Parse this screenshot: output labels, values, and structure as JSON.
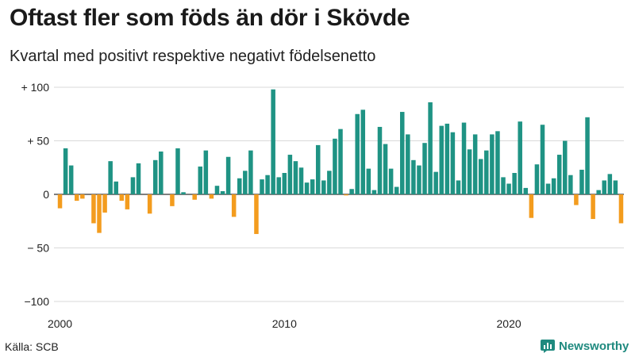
{
  "header": {
    "title": "Oftast fler som föds än dör i Skövde",
    "subtitle": "Kvartal med positivt respektive negativt födelsenetto"
  },
  "footer": {
    "source": "Källa: SCB",
    "brand": "Newsworthy",
    "brand_icon": "bar-chart-logo-icon"
  },
  "chart_data": {
    "type": "bar",
    "title": "Oftast fler som föds än dör i Skövde",
    "subtitle": "Kvartal med positivt respektive negativt födelsenetto",
    "xlabel": "",
    "ylabel": "",
    "ylim": [
      -100,
      100
    ],
    "grid": true,
    "colors": {
      "positive": "#1f9384",
      "negative": "#f39c1e",
      "grid": "#d9d9d9",
      "zero": "#333333"
    },
    "y_ticks": [
      {
        "value": 100,
        "label": "+ 100"
      },
      {
        "value": 50,
        "label": "+  50"
      },
      {
        "value": 0,
        "label": "0"
      },
      {
        "value": -50,
        "label": "− 50"
      },
      {
        "value": -100,
        "label": "−100"
      }
    ],
    "x_ticks": [
      {
        "index": 0,
        "label": "2000"
      },
      {
        "index": 40,
        "label": "2010"
      },
      {
        "index": 80,
        "label": "2020"
      }
    ],
    "first_quarter": "2000 Q1",
    "values": [
      -13,
      43,
      27,
      -6,
      -4,
      0,
      -27,
      -36,
      -17,
      31,
      12,
      -6,
      -14,
      16,
      29,
      0,
      -18,
      32,
      40,
      0,
      -11,
      43,
      2,
      0,
      -5,
      26,
      41,
      -4,
      8,
      3,
      35,
      -21,
      15,
      22,
      41,
      -37,
      14,
      18,
      98,
      16,
      20,
      37,
      31,
      25,
      11,
      14,
      46,
      13,
      22,
      52,
      61,
      -1,
      5,
      75,
      79,
      24,
      4,
      63,
      47,
      24,
      7,
      77,
      56,
      32,
      27,
      48,
      86,
      21,
      64,
      66,
      58,
      13,
      67,
      42,
      56,
      33,
      41,
      56,
      59,
      16,
      10,
      20,
      68,
      6,
      -22,
      28,
      65,
      10,
      15,
      37,
      50,
      18,
      -10,
      23,
      72,
      -23,
      4,
      13,
      19,
      13,
      -27
    ]
  }
}
